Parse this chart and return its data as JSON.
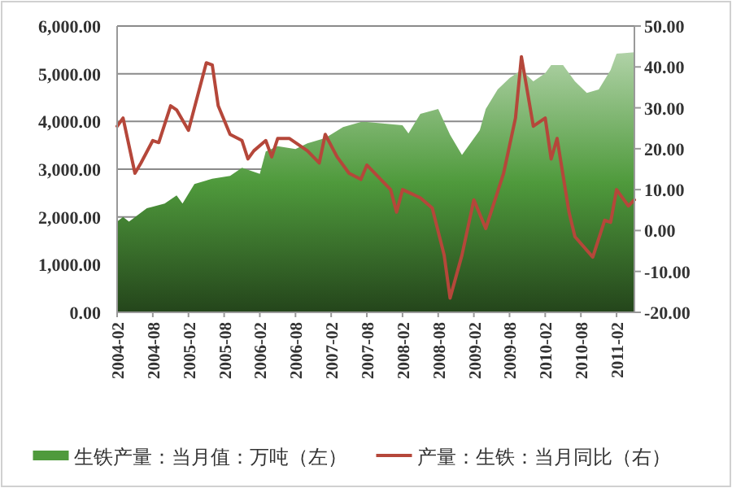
{
  "chart_data": {
    "type": "area",
    "xlim": [
      "2004-02",
      "2011-05"
    ],
    "xticks": [
      "2004-02",
      "2004-08",
      "2005-02",
      "2005-08",
      "2006-02",
      "2006-08",
      "2007-02",
      "2007-08",
      "2008-02",
      "2008-08",
      "2009-02",
      "2009-08",
      "2010-02",
      "2010-08",
      "2011-02"
    ],
    "ylim": [
      0,
      6000
    ],
    "yticks": [
      {
        "value": 0,
        "label": "0.00"
      },
      {
        "value": 1000,
        "label": "1,000.00"
      },
      {
        "value": 2000,
        "label": "2,000.00"
      },
      {
        "value": 3000,
        "label": "3,000.00"
      },
      {
        "value": 4000,
        "label": "4,000.00"
      },
      {
        "value": 5000,
        "label": "5,000.00"
      },
      {
        "value": 6000,
        "label": "6,000.00"
      }
    ],
    "y2lim": [
      -20,
      50
    ],
    "y2ticks": [
      {
        "value": -20,
        "label": "-20.00"
      },
      {
        "value": -10,
        "label": "-10.00"
      },
      {
        "value": 0,
        "label": "0.00"
      },
      {
        "value": 10,
        "label": "10.00"
      },
      {
        "value": 20,
        "label": "20.00"
      },
      {
        "value": 30,
        "label": "30.00"
      },
      {
        "value": 40,
        "label": "40.00"
      },
      {
        "value": 50,
        "label": "50.00"
      }
    ],
    "grid": "y",
    "legend": "bottom",
    "series": [
      {
        "name": "生铁产量：当月值：万吨（左）",
        "type": "area",
        "color": "#4f9a3c",
        "x": [
          "2004-02",
          "2004-03",
          "2004-04",
          "2004-07",
          "2004-10",
          "2004-12",
          "2005-01",
          "2005-03",
          "2005-06",
          "2005-09",
          "2005-11",
          "2006-02",
          "2006-03",
          "2006-05",
          "2006-08",
          "2006-10",
          "2007-01",
          "2007-04",
          "2007-07",
          "2007-08",
          "2008-02",
          "2008-03",
          "2008-05",
          "2008-08",
          "2008-10",
          "2008-12",
          "2009-03",
          "2009-04",
          "2009-06",
          "2009-08",
          "2009-10",
          "2009-12",
          "2010-02",
          "2010-03",
          "2010-05",
          "2010-07",
          "2010-09",
          "2010-11",
          "2011-01",
          "2011-02",
          "2011-05"
        ],
        "values": [
          1900,
          2000,
          1900,
          2180,
          2280,
          2450,
          2280,
          2690,
          2800,
          2860,
          3030,
          2900,
          3370,
          3480,
          3420,
          3540,
          3650,
          3880,
          3990,
          3990,
          3920,
          3750,
          4160,
          4260,
          3720,
          3300,
          3820,
          4260,
          4670,
          4910,
          5080,
          4840,
          5010,
          5180,
          5180,
          4840,
          4600,
          4670,
          5080,
          5420,
          5450
        ]
      },
      {
        "name": "产量：生铁：当月同比（右）",
        "type": "line",
        "axis": "y2",
        "color": "#b5473a",
        "x": [
          "2004-02",
          "2004-03",
          "2004-05",
          "2004-06",
          "2004-08",
          "2004-09",
          "2004-11",
          "2004-12",
          "2005-02",
          "2005-05",
          "2005-06",
          "2005-07",
          "2005-09",
          "2005-11",
          "2005-12",
          "2006-01",
          "2006-03",
          "2006-04",
          "2006-05",
          "2006-07",
          "2006-10",
          "2006-12",
          "2007-01",
          "2007-03",
          "2007-05",
          "2007-07",
          "2007-08",
          "2007-12",
          "2008-01",
          "2008-02",
          "2008-05",
          "2008-07",
          "2008-09",
          "2008-10",
          "2008-12",
          "2009-02",
          "2009-04",
          "2009-07",
          "2009-09",
          "2009-10",
          "2009-12",
          "2010-02",
          "2010-03",
          "2010-04",
          "2010-06",
          "2010-07",
          "2010-10",
          "2010-12",
          "2011-01",
          "2011-02",
          "2011-04",
          "2011-05"
        ],
        "values": [
          25.5,
          27.5,
          14,
          16.5,
          22,
          21.5,
          30.5,
          29.5,
          24.5,
          41,
          40.5,
          30.5,
          23.5,
          22,
          17.5,
          19.5,
          22,
          18,
          22.5,
          22.5,
          19.5,
          16.5,
          23.5,
          18,
          14,
          12.5,
          16,
          10,
          4.5,
          10,
          8,
          5.5,
          -6,
          -16.5,
          -6,
          7.5,
          0.5,
          14,
          27.5,
          42.5,
          25.5,
          27.5,
          17.5,
          22.5,
          4.5,
          -1.5,
          -6.5,
          2.5,
          2,
          10,
          6,
          7.5
        ]
      }
    ]
  }
}
